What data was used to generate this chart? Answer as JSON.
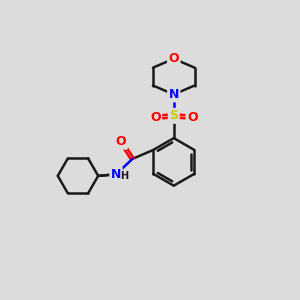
{
  "bg_color": "#dcdcdc",
  "bond_color": "#1a1a1a",
  "bond_width": 1.8,
  "atom_colors": {
    "O": "#ff0000",
    "N": "#0000ff",
    "S": "#cccc00",
    "C": "#1a1a1a",
    "H": "#1a1a1a"
  },
  "font_size_atom": 9,
  "font_size_H": 7,
  "xlim": [
    0,
    10
  ],
  "ylim": [
    0,
    10
  ]
}
